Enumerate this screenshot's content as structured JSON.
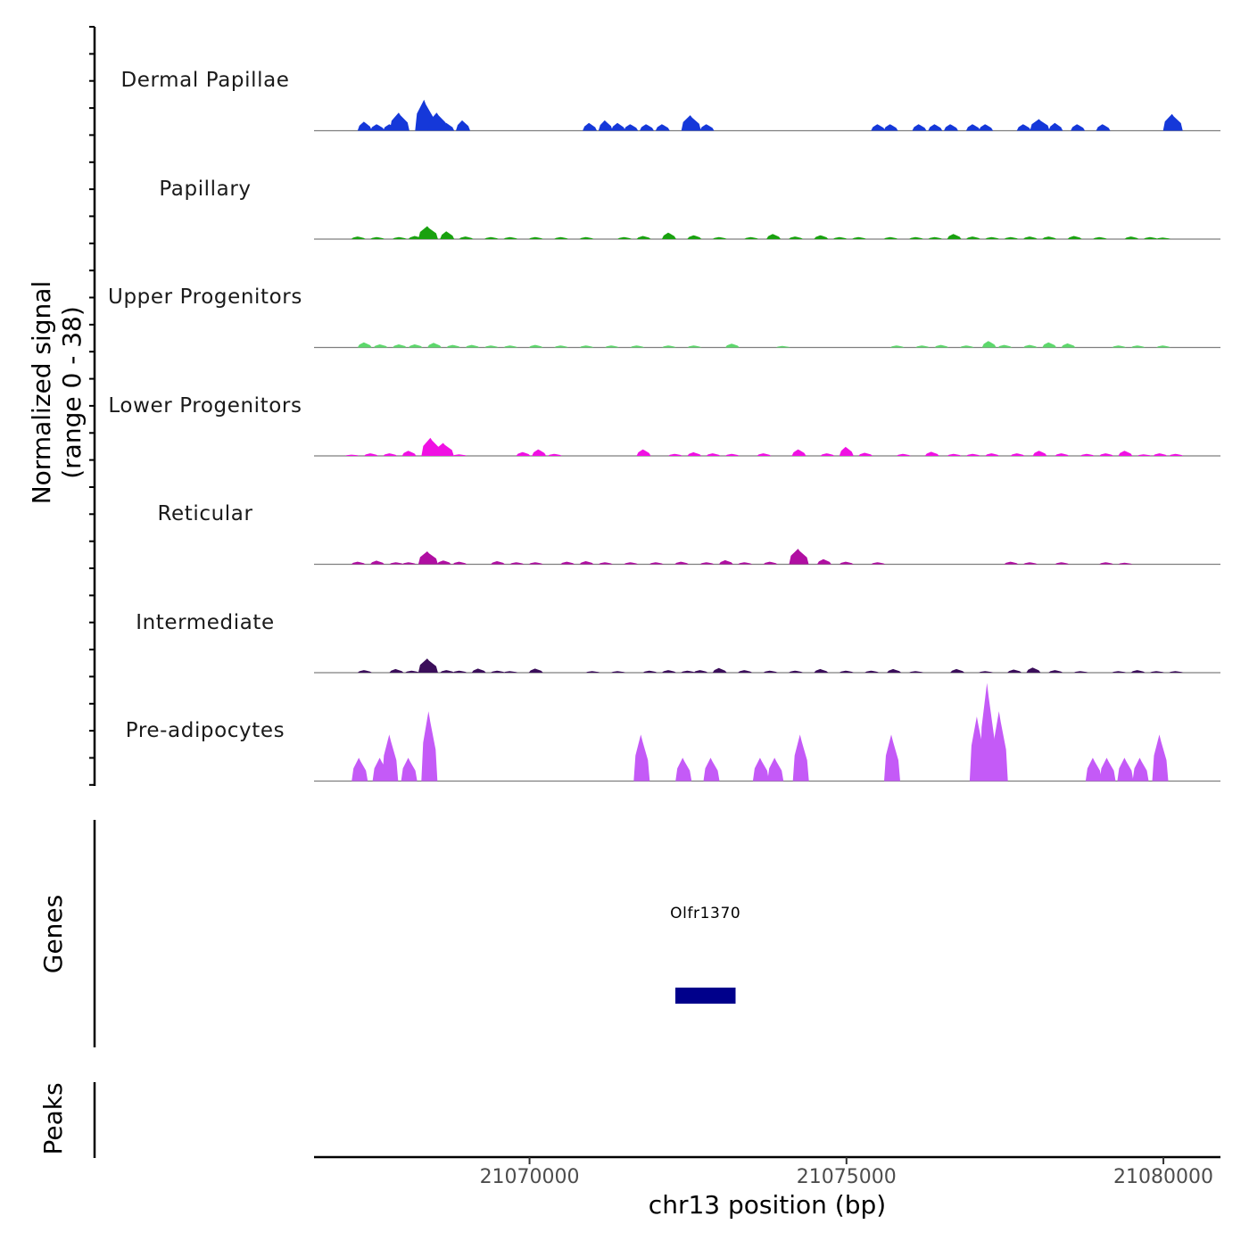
{
  "axis": {
    "y_title_line1": "Normalized signal",
    "y_title_line2": "(range 0 - 38)",
    "genes_title": "Genes",
    "peaks_title": "Peaks",
    "x_title": "chr13 position (bp)"
  },
  "gene": {
    "name": "Olfr1370",
    "start": 21072300,
    "end": 21073250,
    "color": "#00008B"
  },
  "chart_data": {
    "type": "area",
    "title": "",
    "xlabel": "chr13 position (bp)",
    "ylabel": "Normalized signal (range 0 - 38)",
    "xlim": [
      21066600,
      21080900
    ],
    "ylim": [
      0,
      38
    ],
    "x_ticks": [
      21070000,
      21075000,
      21080000
    ],
    "x_tick_labels": [
      "21070000",
      "21075000",
      "21080000"
    ],
    "series": [
      {
        "name": "Dermal Papillae",
        "color": "#1538D9",
        "peaks": [
          [
            21067400,
            3.5
          ],
          [
            21067600,
            2.5
          ],
          [
            21067800,
            2.5
          ],
          [
            21067950,
            7
          ],
          [
            21068350,
            12
          ],
          [
            21068550,
            7
          ],
          [
            21068700,
            3
          ],
          [
            21068950,
            4
          ],
          [
            21070950,
            3
          ],
          [
            21071200,
            4
          ],
          [
            21071400,
            3
          ],
          [
            21071600,
            2.5
          ],
          [
            21071850,
            2.5
          ],
          [
            21072100,
            2.5
          ],
          [
            21072550,
            6
          ],
          [
            21072800,
            2.5
          ],
          [
            21075500,
            2.5
          ],
          [
            21075700,
            2.5
          ],
          [
            21076150,
            2.5
          ],
          [
            21076400,
            2.5
          ],
          [
            21076650,
            2.5
          ],
          [
            21077000,
            2.5
          ],
          [
            21077200,
            2.5
          ],
          [
            21077800,
            2.5
          ],
          [
            21078050,
            4.5
          ],
          [
            21078300,
            3
          ],
          [
            21078650,
            2.5
          ],
          [
            21079050,
            2.5
          ],
          [
            21080150,
            6.5
          ]
        ]
      },
      {
        "name": "Papillary",
        "color": "#19A10F",
        "peaks": [
          [
            21067300,
            1
          ],
          [
            21067600,
            0.8
          ],
          [
            21067950,
            0.8
          ],
          [
            21068200,
            1.2
          ],
          [
            21068400,
            5
          ],
          [
            21068700,
            3
          ],
          [
            21069000,
            1
          ],
          [
            21069400,
            0.8
          ],
          [
            21069700,
            0.8
          ],
          [
            21070100,
            0.8
          ],
          [
            21070500,
            0.8
          ],
          [
            21070900,
            0.8
          ],
          [
            21071500,
            0.8
          ],
          [
            21071800,
            1.2
          ],
          [
            21072200,
            2.5
          ],
          [
            21072600,
            1.5
          ],
          [
            21073000,
            0.8
          ],
          [
            21073500,
            0.8
          ],
          [
            21073850,
            2
          ],
          [
            21074200,
            1
          ],
          [
            21074600,
            1.5
          ],
          [
            21074900,
            0.8
          ],
          [
            21075200,
            0.8
          ],
          [
            21075700,
            0.8
          ],
          [
            21076100,
            0.8
          ],
          [
            21076400,
            0.8
          ],
          [
            21076700,
            2
          ],
          [
            21077000,
            1
          ],
          [
            21077300,
            0.8
          ],
          [
            21077600,
            0.8
          ],
          [
            21077900,
            1
          ],
          [
            21078200,
            1
          ],
          [
            21078600,
            1.2
          ],
          [
            21079000,
            0.8
          ],
          [
            21079500,
            1
          ],
          [
            21079800,
            0.8
          ],
          [
            21080000,
            0.6
          ]
        ]
      },
      {
        "name": "Upper Progenitors",
        "color": "#5DD86C",
        "peaks": [
          [
            21067400,
            2
          ],
          [
            21067650,
            1.2
          ],
          [
            21067950,
            1.2
          ],
          [
            21068200,
            1.2
          ],
          [
            21068500,
            1.8
          ],
          [
            21068800,
            1
          ],
          [
            21069100,
            1
          ],
          [
            21069400,
            0.8
          ],
          [
            21069700,
            0.8
          ],
          [
            21070100,
            1
          ],
          [
            21070500,
            0.8
          ],
          [
            21070900,
            0.8
          ],
          [
            21071300,
            0.8
          ],
          [
            21071700,
            0.8
          ],
          [
            21072200,
            0.8
          ],
          [
            21072600,
            0.8
          ],
          [
            21073200,
            1.5
          ],
          [
            21074000,
            0.6
          ],
          [
            21075800,
            0.8
          ],
          [
            21076200,
            0.8
          ],
          [
            21076500,
            1
          ],
          [
            21076900,
            0.8
          ],
          [
            21077250,
            2.5
          ],
          [
            21077500,
            1
          ],
          [
            21077900,
            1
          ],
          [
            21078200,
            2
          ],
          [
            21078500,
            1.6
          ],
          [
            21079300,
            0.8
          ],
          [
            21079600,
            0.8
          ],
          [
            21080000,
            0.8
          ]
        ]
      },
      {
        "name": "Lower Progenitors",
        "color": "#F011E3",
        "peaks": [
          [
            21067200,
            0.5
          ],
          [
            21067500,
            1
          ],
          [
            21067800,
            1
          ],
          [
            21068100,
            2
          ],
          [
            21068450,
            7
          ],
          [
            21068650,
            5
          ],
          [
            21068900,
            0.6
          ],
          [
            21069900,
            1.5
          ],
          [
            21070150,
            2.5
          ],
          [
            21070400,
            0.8
          ],
          [
            21071800,
            2.5
          ],
          [
            21072300,
            0.8
          ],
          [
            21072600,
            1.4
          ],
          [
            21072900,
            1
          ],
          [
            21073200,
            0.8
          ],
          [
            21073700,
            1
          ],
          [
            21074250,
            2.5
          ],
          [
            21074700,
            1
          ],
          [
            21075000,
            3.5
          ],
          [
            21075300,
            1.2
          ],
          [
            21075900,
            0.8
          ],
          [
            21076350,
            1.6
          ],
          [
            21076700,
            0.8
          ],
          [
            21077000,
            0.8
          ],
          [
            21077300,
            1
          ],
          [
            21077700,
            1
          ],
          [
            21078050,
            2
          ],
          [
            21078400,
            1
          ],
          [
            21078800,
            0.8
          ],
          [
            21079100,
            1
          ],
          [
            21079400,
            2
          ],
          [
            21079700,
            0.6
          ],
          [
            21079950,
            1
          ],
          [
            21080200,
            0.8
          ]
        ]
      },
      {
        "name": "Reticular",
        "color": "#B00FA2",
        "peaks": [
          [
            21067300,
            1
          ],
          [
            21067600,
            1.4
          ],
          [
            21067900,
            0.8
          ],
          [
            21068100,
            0.8
          ],
          [
            21068400,
            5
          ],
          [
            21068650,
            1.5
          ],
          [
            21068900,
            1
          ],
          [
            21069500,
            1.2
          ],
          [
            21069800,
            0.8
          ],
          [
            21070100,
            0.8
          ],
          [
            21070600,
            1
          ],
          [
            21070900,
            1.2
          ],
          [
            21071200,
            0.8
          ],
          [
            21071600,
            0.8
          ],
          [
            21072000,
            0.8
          ],
          [
            21072400,
            1
          ],
          [
            21072800,
            0.8
          ],
          [
            21073100,
            1.6
          ],
          [
            21073400,
            0.8
          ],
          [
            21073800,
            1
          ],
          [
            21074250,
            6
          ],
          [
            21074650,
            2
          ],
          [
            21075000,
            1
          ],
          [
            21075500,
            0.8
          ],
          [
            21077600,
            1
          ],
          [
            21077900,
            0.8
          ],
          [
            21078400,
            0.8
          ],
          [
            21079100,
            0.8
          ],
          [
            21079400,
            0.6
          ]
        ]
      },
      {
        "name": "Intermediate",
        "color": "#3B0E5A",
        "peaks": [
          [
            21067400,
            1
          ],
          [
            21067900,
            1.4
          ],
          [
            21068150,
            0.8
          ],
          [
            21068400,
            5.5
          ],
          [
            21068700,
            1
          ],
          [
            21068900,
            0.8
          ],
          [
            21069200,
            1.6
          ],
          [
            21069500,
            0.8
          ],
          [
            21069700,
            0.6
          ],
          [
            21070100,
            1.6
          ],
          [
            21071000,
            0.6
          ],
          [
            21071400,
            0.6
          ],
          [
            21071900,
            0.8
          ],
          [
            21072200,
            1
          ],
          [
            21072500,
            0.8
          ],
          [
            21072700,
            1
          ],
          [
            21073000,
            1.8
          ],
          [
            21073400,
            1
          ],
          [
            21073800,
            0.8
          ],
          [
            21074200,
            0.8
          ],
          [
            21074600,
            1.4
          ],
          [
            21075000,
            0.8
          ],
          [
            21075400,
            0.8
          ],
          [
            21075750,
            1.4
          ],
          [
            21076100,
            0.6
          ],
          [
            21076750,
            1.4
          ],
          [
            21077200,
            0.6
          ],
          [
            21077650,
            1.2
          ],
          [
            21077950,
            2
          ],
          [
            21078300,
            1
          ],
          [
            21078700,
            0.6
          ],
          [
            21079300,
            0.6
          ],
          [
            21079600,
            1
          ],
          [
            21079900,
            0.6
          ],
          [
            21080200,
            0.6
          ]
        ]
      },
      {
        "name": "Pre-adipocytes",
        "color": "#C45AF7",
        "peaks": [
          [
            21067320,
            9
          ],
          [
            21067650,
            9
          ],
          [
            21067800,
            18
          ],
          [
            21068100,
            9
          ],
          [
            21068420,
            27
          ],
          [
            21071770,
            18
          ],
          [
            21072430,
            9
          ],
          [
            21072870,
            9
          ],
          [
            21073650,
            9
          ],
          [
            21073880,
            9
          ],
          [
            21074280,
            18
          ],
          [
            21075720,
            18
          ],
          [
            21077070,
            25
          ],
          [
            21077230,
            38
          ],
          [
            21077420,
            27
          ],
          [
            21078900,
            9
          ],
          [
            21079120,
            9
          ],
          [
            21079400,
            9
          ],
          [
            21079640,
            9
          ],
          [
            21079950,
            18
          ]
        ]
      }
    ]
  }
}
